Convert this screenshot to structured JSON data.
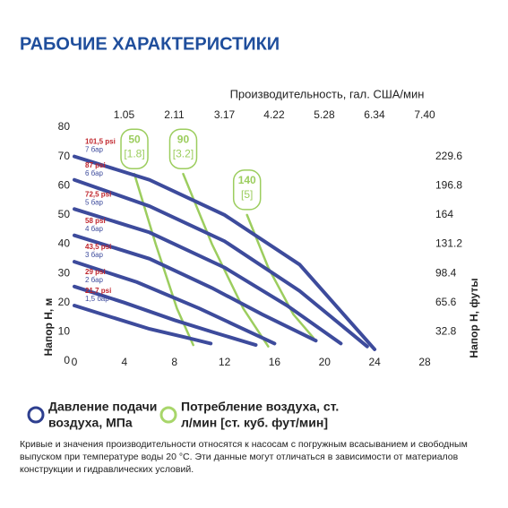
{
  "chart_data": {
    "type": "line",
    "title": "РАБОЧИЕ ХАРАКТЕРИСТИКИ",
    "x2_label": "Производительность, гал. США/мин",
    "y_label": "Напор Н, м",
    "y2_label": "Напор Н, футы",
    "xlim": [
      0,
      28
    ],
    "xticks": [
      0,
      4,
      8,
      12,
      16,
      20,
      24,
      28
    ],
    "x2lim": [
      0,
      7.4
    ],
    "x2ticks": [
      1.05,
      2.11,
      3.17,
      4.22,
      5.28,
      6.34,
      {
        "value": 7.4,
        "label": "7.40"
      }
    ],
    "ylim": [
      0,
      80
    ],
    "yticks": [
      0,
      10,
      20,
      30,
      40,
      50,
      60,
      70,
      80
    ],
    "y2lim": [
      0,
      262.4
    ],
    "y2ticks": [
      32.8,
      65.6,
      98.4,
      131.2,
      164,
      196.8,
      229.6
    ],
    "series": [
      {
        "label_psi": "101,5 psi",
        "label_bar": "7 бар",
        "color": "#3d4b9c",
        "x": [
          0,
          6,
          12,
          18,
          24
        ],
        "values": [
          70,
          62,
          50,
          33,
          4
        ]
      },
      {
        "label_psi": "87 psi",
        "label_bar": "6 бар",
        "color": "#3d4b9c",
        "x": [
          0,
          6,
          12,
          18,
          23.4
        ],
        "values": [
          62,
          53,
          41,
          24,
          5
        ]
      },
      {
        "label_psi": "72,5 psi",
        "label_bar": "5 бар",
        "color": "#3d4b9c",
        "x": [
          0,
          6,
          12,
          17,
          21.3
        ],
        "values": [
          52,
          44,
          32,
          19,
          6
        ]
      },
      {
        "label_psi": "58 psi",
        "label_bar": "4 бар",
        "color": "#3d4b9c",
        "x": [
          0,
          6,
          11,
          15,
          19.3
        ],
        "values": [
          43,
          35,
          25,
          16,
          7
        ]
      },
      {
        "label_psi": "43,5 psi",
        "label_bar": "3 бар",
        "color": "#3d4b9c",
        "x": [
          0,
          5,
          10,
          13,
          16
        ],
        "values": [
          34,
          27,
          18,
          12,
          6
        ]
      },
      {
        "label_psi": "29 psi",
        "label_bar": "2 бар",
        "color": "#3d4b9c",
        "x": [
          0,
          4,
          8,
          11,
          14.5
        ],
        "values": [
          25.5,
          20,
          14,
          10,
          5.5
        ]
      },
      {
        "label_psi": "21,7 psi",
        "label_bar": "1,5 бар",
        "color": "#3d4b9c",
        "x": [
          0,
          3,
          6,
          9,
          10.9
        ],
        "values": [
          19,
          15,
          11,
          8,
          6
        ]
      }
    ],
    "air_series": [
      {
        "label": "50",
        "sublabel": "[1.8]",
        "color": "#9ccd5e",
        "x": [
          4.8,
          6.5,
          8.2,
          9.5
        ],
        "values": [
          64,
          40,
          18,
          5.5
        ]
      },
      {
        "label": "90",
        "sublabel": "[3.2]",
        "color": "#9ccd5e",
        "x": [
          8.7,
          11,
          13.5,
          15.5
        ],
        "values": [
          64,
          40,
          18,
          5
        ]
      },
      {
        "label": "140",
        "sublabel": "[5]",
        "color": "#9ccd5e",
        "x": [
          13.8,
          15.5,
          17.5,
          19.1
        ],
        "values": [
          50,
          32,
          16,
          8
        ]
      }
    ],
    "legend": [
      {
        "lines": [
          "Давление подачи",
          "воздуха, МПа"
        ],
        "color": "#2e3f8f"
      },
      {
        "lines": [
          "Потребление воздуха, ст.",
          "л/мин [ст. куб. фут/мин]"
        ],
        "color": "#a8d66a"
      }
    ],
    "footnote": [
      "Кривые и значения производительности относятся к насосам с погружным всасыванием и свободным",
      "выпуском при температуре воды 20 °C. Эти данные могут отличаться в зависимости от материалов",
      "конструкции и гидравлических условий."
    ]
  }
}
